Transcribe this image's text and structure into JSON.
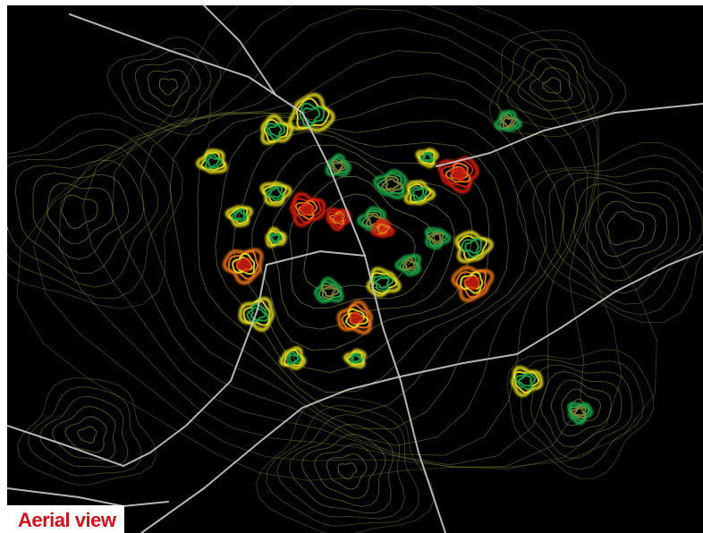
{
  "caption": "Aerial view",
  "colors": {
    "background": "#000000",
    "road": "#c8c8c8",
    "contour_low": "#7f8a3a",
    "contour_mid_green": "#1fa84a",
    "contour_yellow": "#e8e020",
    "contour_orange": "#f07818",
    "contour_red": "#e02010",
    "caption_text": "#d0101c",
    "caption_bg": "#ffffff"
  }
}
